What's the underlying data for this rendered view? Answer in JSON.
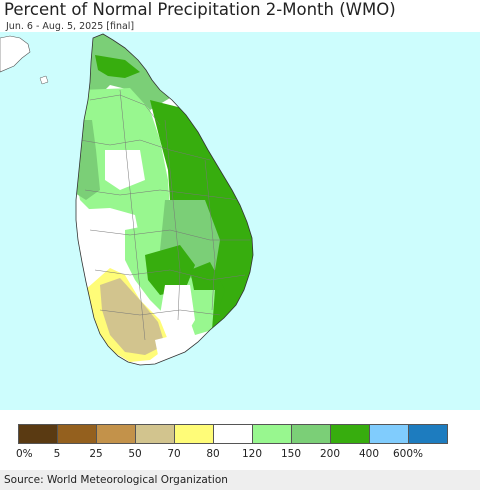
{
  "title": "Percent of Normal Precipitation 2-Month (WMO)",
  "subtitle": "Jun. 6 - Aug. 5, 2025 [final]",
  "colors": {
    "ocean": "#cdfdfd",
    "land_border": "#555555"
  },
  "legend": {
    "colors": [
      "#5a3a12",
      "#94601e",
      "#c3924a",
      "#d2c48e",
      "#fffc78",
      "#ffffff",
      "#98f78f",
      "#7bcf77",
      "#37ad0e",
      "#80ccfd",
      "#1d7cbf"
    ],
    "labels": [
      "0%",
      "5",
      "25",
      "50",
      "70",
      "80",
      "120",
      "150",
      "200",
      "400",
      "600%"
    ]
  },
  "source": "Source: World Meteorological Organization"
}
